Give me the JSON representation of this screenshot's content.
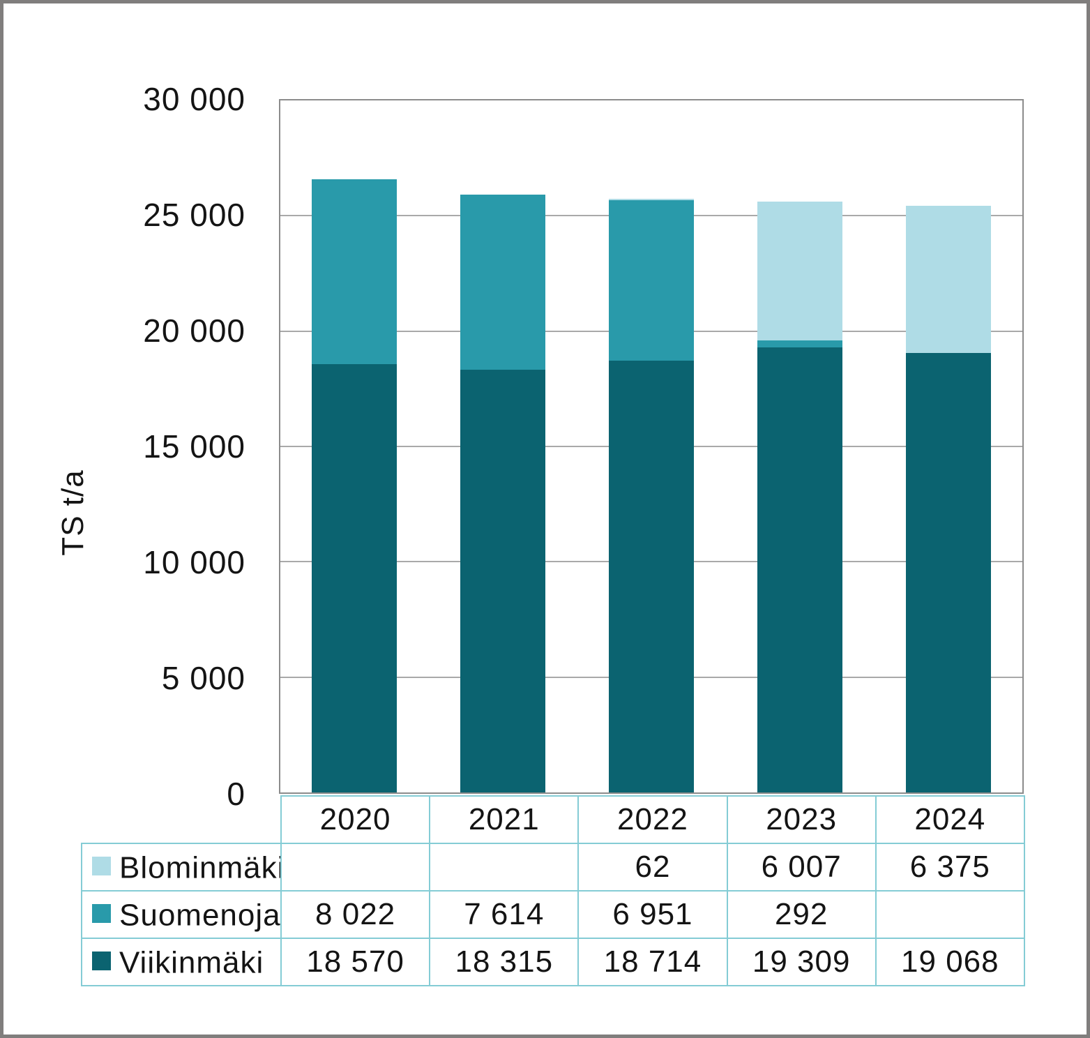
{
  "colors": {
    "frame": "#807e7d",
    "plot_border": "#8c8c8c",
    "gridline": "#a9a9a9",
    "table_border": "#84ccd5",
    "text": "#141414"
  },
  "chart_data": {
    "type": "bar",
    "stacked": true,
    "title": "",
    "xlabel": "",
    "ylabel": "TS t/a",
    "ylim": [
      0,
      30000
    ],
    "ytick_step": 5000,
    "ytick_labels": [
      "0",
      "5 000",
      "10 000",
      "15 000",
      "20 000",
      "25 000",
      "30 000"
    ],
    "grid": true,
    "legend_position": "table-left",
    "categories": [
      "2020",
      "2021",
      "2022",
      "2023",
      "2024"
    ],
    "series": [
      {
        "name": "Blominmäki",
        "color": "#afdce6",
        "values": [
          null,
          null,
          62,
          6007,
          6375
        ]
      },
      {
        "name": "Suomenoja",
        "color": "#299aaa",
        "values": [
          8022,
          7614,
          6951,
          292,
          null
        ]
      },
      {
        "name": "Viikinmäki",
        "color": "#0b6370",
        "values": [
          18570,
          18315,
          18714,
          19309,
          19068
        ]
      }
    ]
  },
  "table": {
    "col_headers": [
      "2020",
      "2021",
      "2022",
      "2023",
      "2024"
    ],
    "rows": [
      {
        "label": "Blominmäki",
        "swatch_color": "#afdce6",
        "cells": [
          "",
          "",
          "62",
          "6 007",
          "6 375"
        ]
      },
      {
        "label": "Suomenoja",
        "swatch_color": "#299aaa",
        "cells": [
          "8 022",
          "7 614",
          "6 951",
          "292",
          ""
        ]
      },
      {
        "label": "Viikinmäki",
        "swatch_color": "#0b6370",
        "cells": [
          "18 570",
          "18 315",
          "18 714",
          "19 309",
          "19 068"
        ]
      }
    ]
  }
}
